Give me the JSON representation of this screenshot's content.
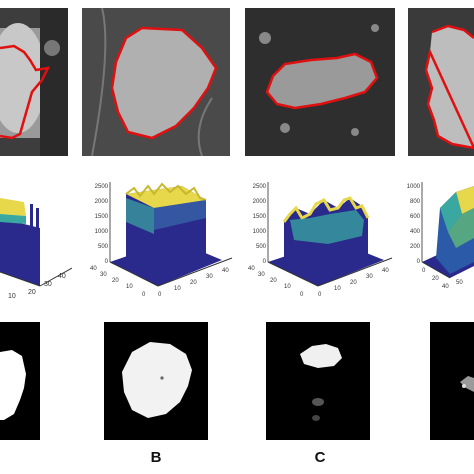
{
  "figure": {
    "columns": [
      {
        "label": ""
      },
      {
        "label": "B"
      },
      {
        "label": "C"
      },
      {
        "label": ""
      }
    ],
    "colors": {
      "contour": "#e01010",
      "surface_base": "#2a2a8c",
      "surface_top": "#e6d84a",
      "surface_mid": "#3aa8a0"
    },
    "plots": [
      {
        "z_ticks": [],
        "x_ticks": [
          "10",
          "20",
          "30",
          "40"
        ],
        "y_ticks": []
      },
      {
        "z_ticks": [
          "2500",
          "2000",
          "1500",
          "1000",
          "500",
          "0"
        ],
        "x_ticks": [
          "0",
          "10",
          "20",
          "30",
          "40"
        ],
        "y_ticks": [
          "40",
          "30",
          "20",
          "10",
          "0"
        ]
      },
      {
        "z_ticks": [
          "2500",
          "2000",
          "1500",
          "1000",
          "500",
          "0"
        ],
        "x_ticks": [
          "0",
          "10",
          "20",
          "30",
          "40"
        ],
        "y_ticks": [
          "40",
          "30",
          "20",
          "10",
          "0"
        ]
      },
      {
        "z_ticks": [
          "1000",
          "800",
          "600",
          "400",
          "200",
          "0"
        ],
        "x_ticks": [
          "50",
          "40",
          "30"
        ],
        "y_ticks": [
          "0",
          "20",
          "40"
        ]
      }
    ]
  }
}
